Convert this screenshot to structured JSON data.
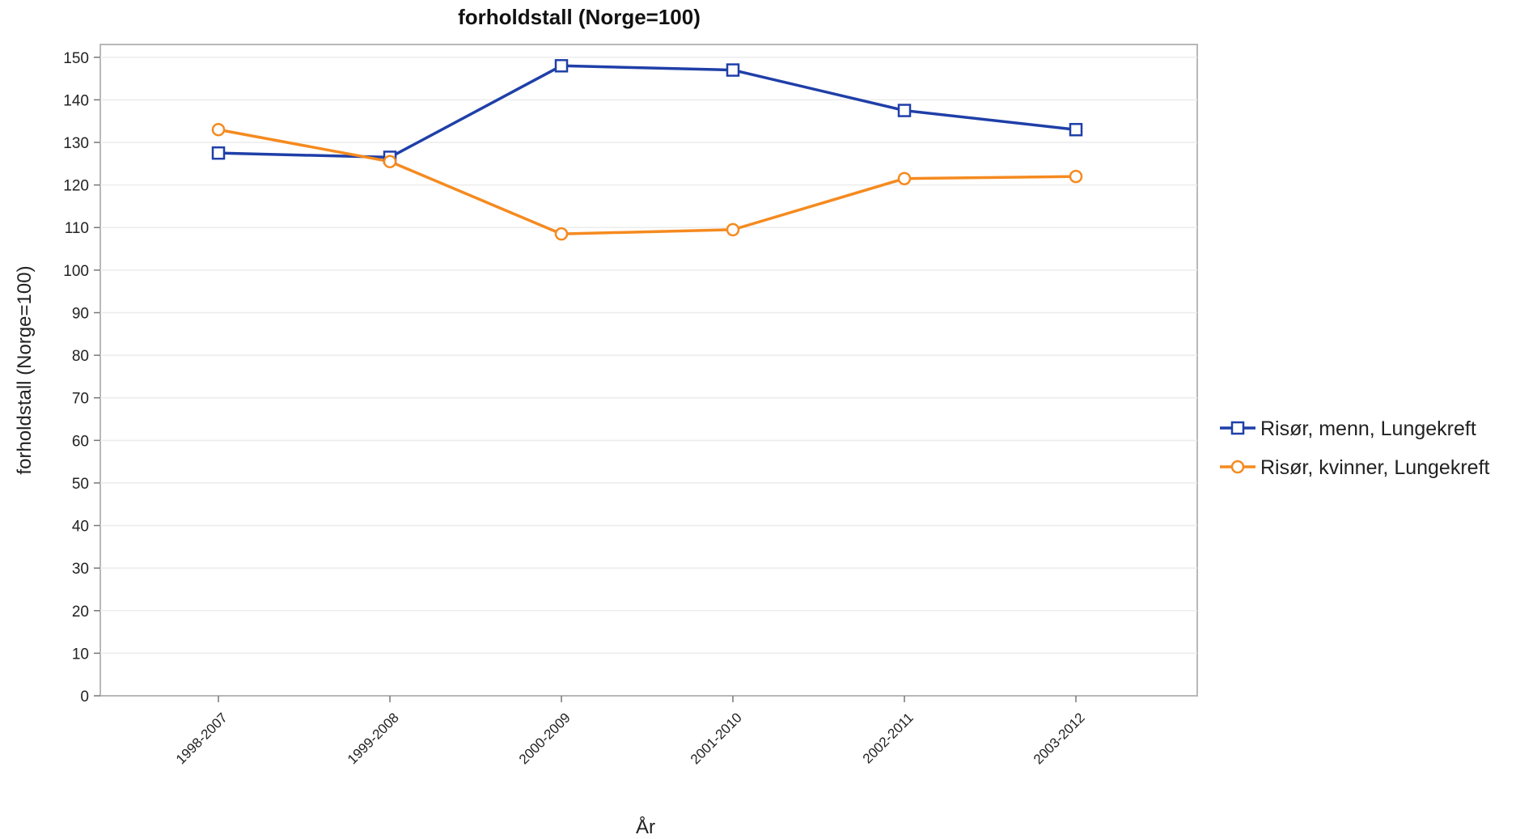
{
  "chart_data": {
    "type": "line",
    "title": "forholdstall (Norge=100)",
    "xlabel": "År",
    "ylabel": "forholdstall (Norge=100)",
    "ylim": [
      0,
      150
    ],
    "yticks": [
      0,
      10,
      20,
      30,
      40,
      50,
      60,
      70,
      80,
      90,
      100,
      110,
      120,
      130,
      140,
      150
    ],
    "categories": [
      "1998-2007",
      "1999-2008",
      "2000-2009",
      "2001-2010",
      "2002-2011",
      "2003-2012"
    ],
    "grid": true,
    "legend_position": "right",
    "series": [
      {
        "name": "Risør, menn, Lungekreft",
        "color": "#1f3fa8",
        "marker": "square",
        "values": [
          127.5,
          126.5,
          148,
          147,
          137.5,
          133
        ]
      },
      {
        "name": "Risør, kvinner, Lungekreft",
        "color": "#f58a1f",
        "marker": "circle",
        "values": [
          133,
          125.5,
          108.5,
          109.5,
          121.5,
          122
        ]
      }
    ]
  }
}
